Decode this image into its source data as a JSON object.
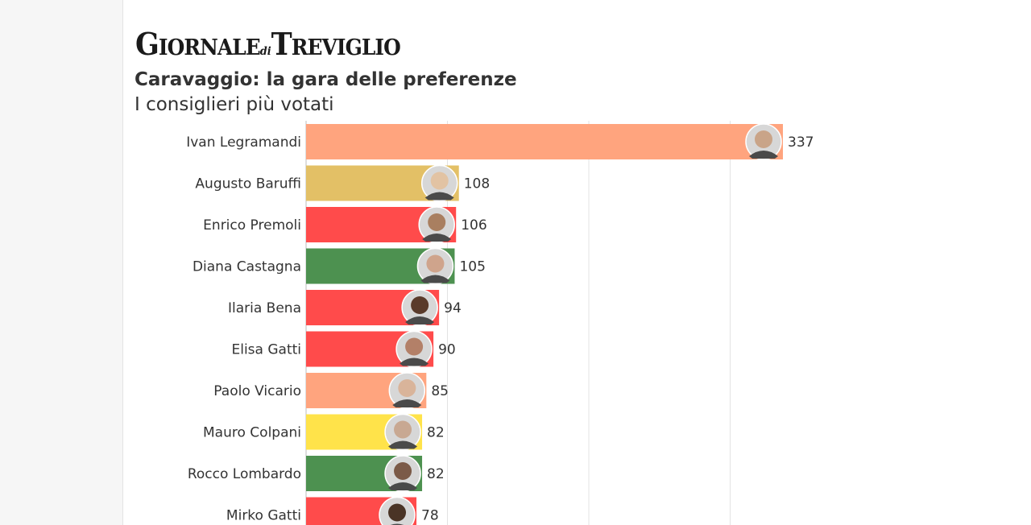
{
  "header": {
    "logo_part1": "G",
    "logo_part2": "IORNALE",
    "logo_di": "di",
    "logo_part3": "T",
    "logo_part4": "REVIGLIO"
  },
  "chart_data": {
    "type": "bar",
    "orientation": "horizontal",
    "title": "Caravaggio: la gara delle preferenze",
    "subtitle": "I consiglieri più votati",
    "xlim": [
      0,
      337
    ],
    "grid": true,
    "categories": [
      "Ivan Legramandi",
      "Augusto Baruffi",
      "Enrico Premoli",
      "Diana Castagna",
      "Ilaria Bena",
      "Elisa Gatti",
      "Paolo Vicario",
      "Mauro Colpani",
      "Rocco Lombardo",
      "Mirko Gatti"
    ],
    "values": [
      337,
      108,
      106,
      105,
      94,
      90,
      85,
      82,
      82,
      78
    ],
    "colors": [
      "#ffa47e",
      "#e3c066",
      "#ff4b4b",
      "#4d9150",
      "#ff4b4b",
      "#ff4b4b",
      "#ffa47e",
      "#ffe34a",
      "#4d9150",
      "#ff4b4b"
    ],
    "skin_colors": [
      "#c9a488",
      "#e2c3a3",
      "#a97f60",
      "#cfa48c",
      "#5a3b2b",
      "#b38068",
      "#d9b49a",
      "#c8a892",
      "#7b5a48",
      "#4a3426"
    ]
  }
}
